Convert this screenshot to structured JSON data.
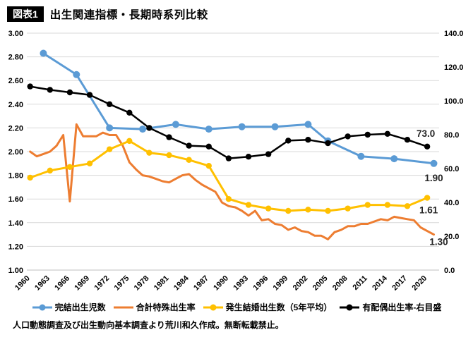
{
  "header": {
    "badge": "図表1",
    "title": "出生関連指標・長期時系列比較"
  },
  "chart_data": {
    "type": "line",
    "title": "出生関連指標・長期時系列比較",
    "grid": true,
    "legend_position": "bottom",
    "x_tick_labels": [
      "1960",
      "1963",
      "1966",
      "1969",
      "1972",
      "1975",
      "1978",
      "1981",
      "1984",
      "1987",
      "1990",
      "1993",
      "1996",
      "1999",
      "2002",
      "2005",
      "2008",
      "2011",
      "2014",
      "2017",
      "2020"
    ],
    "left_axis": {
      "min": 1.0,
      "max": 3.0,
      "tick_labels": [
        "3.00",
        "2.80",
        "2.60",
        "2.40",
        "2.20",
        "2.00",
        "1.80",
        "1.60",
        "1.40",
        "1.20",
        "1.00"
      ]
    },
    "right_axis": {
      "min": 0,
      "max": 140,
      "tick_labels": [
        "140.0",
        "120.0",
        "100.0",
        "80.0",
        "60.0",
        "40.0",
        "20.0",
        "0.0"
      ]
    },
    "series": [
      {
        "name": "完結出生児数",
        "color": "#5B9BD5",
        "axis": "left",
        "marker": true,
        "end_label": "1.90",
        "points": [
          [
            1962,
            2.83
          ],
          [
            1967,
            2.65
          ],
          [
            1972,
            2.2
          ],
          [
            1977,
            2.19
          ],
          [
            1982,
            2.23
          ],
          [
            1987,
            2.19
          ],
          [
            1992,
            2.21
          ],
          [
            1997,
            2.21
          ],
          [
            2002,
            2.23
          ],
          [
            2005,
            2.09
          ],
          [
            2010,
            1.96
          ],
          [
            2015,
            1.94
          ],
          [
            2021,
            1.9
          ]
        ]
      },
      {
        "name": "合計特殊出生率",
        "color": "#ED7D31",
        "axis": "left",
        "marker": false,
        "end_label": "1.30",
        "points": [
          [
            1960,
            2.0
          ],
          [
            1961,
            1.96
          ],
          [
            1962,
            1.98
          ],
          [
            1963,
            2.0
          ],
          [
            1964,
            2.05
          ],
          [
            1965,
            2.14
          ],
          [
            1966,
            1.58
          ],
          [
            1967,
            2.23
          ],
          [
            1968,
            2.13
          ],
          [
            1969,
            2.13
          ],
          [
            1970,
            2.13
          ],
          [
            1971,
            2.16
          ],
          [
            1972,
            2.14
          ],
          [
            1973,
            2.14
          ],
          [
            1974,
            2.05
          ],
          [
            1975,
            1.91
          ],
          [
            1976,
            1.85
          ],
          [
            1977,
            1.8
          ],
          [
            1978,
            1.79
          ],
          [
            1979,
            1.77
          ],
          [
            1980,
            1.75
          ],
          [
            1981,
            1.74
          ],
          [
            1982,
            1.77
          ],
          [
            1983,
            1.8
          ],
          [
            1984,
            1.81
          ],
          [
            1985,
            1.76
          ],
          [
            1986,
            1.72
          ],
          [
            1987,
            1.69
          ],
          [
            1988,
            1.66
          ],
          [
            1989,
            1.57
          ],
          [
            1990,
            1.54
          ],
          [
            1991,
            1.53
          ],
          [
            1992,
            1.5
          ],
          [
            1993,
            1.46
          ],
          [
            1994,
            1.5
          ],
          [
            1995,
            1.42
          ],
          [
            1996,
            1.43
          ],
          [
            1997,
            1.39
          ],
          [
            1998,
            1.38
          ],
          [
            1999,
            1.34
          ],
          [
            2000,
            1.36
          ],
          [
            2001,
            1.33
          ],
          [
            2002,
            1.32
          ],
          [
            2003,
            1.29
          ],
          [
            2004,
            1.29
          ],
          [
            2005,
            1.26
          ],
          [
            2006,
            1.32
          ],
          [
            2007,
            1.34
          ],
          [
            2008,
            1.37
          ],
          [
            2009,
            1.37
          ],
          [
            2010,
            1.39
          ],
          [
            2011,
            1.39
          ],
          [
            2012,
            1.41
          ],
          [
            2013,
            1.43
          ],
          [
            2014,
            1.42
          ],
          [
            2015,
            1.45
          ],
          [
            2016,
            1.44
          ],
          [
            2017,
            1.43
          ],
          [
            2018,
            1.42
          ],
          [
            2019,
            1.36
          ],
          [
            2020,
            1.33
          ],
          [
            2021,
            1.3
          ]
        ]
      },
      {
        "name": "発生結婚出生数（5年平均）",
        "color": "#FFC000",
        "axis": "left",
        "marker": true,
        "end_label": "1.61",
        "points": [
          [
            1960,
            1.78
          ],
          [
            1963,
            1.84
          ],
          [
            1966,
            1.87
          ],
          [
            1969,
            1.9
          ],
          [
            1972,
            2.02
          ],
          [
            1975,
            2.09
          ],
          [
            1978,
            1.99
          ],
          [
            1981,
            1.97
          ],
          [
            1984,
            1.93
          ],
          [
            1987,
            1.88
          ],
          [
            1990,
            1.6
          ],
          [
            1993,
            1.55
          ],
          [
            1996,
            1.52
          ],
          [
            1999,
            1.5
          ],
          [
            2002,
            1.51
          ],
          [
            2005,
            1.5
          ],
          [
            2008,
            1.52
          ],
          [
            2011,
            1.55
          ],
          [
            2014,
            1.55
          ],
          [
            2017,
            1.54
          ],
          [
            2020,
            1.61
          ]
        ]
      },
      {
        "name": "有配偶出生率-右目盛",
        "color": "#000000",
        "axis": "right",
        "marker": true,
        "end_label": "73.0",
        "points": [
          [
            1960,
            108.5
          ],
          [
            1963,
            106.5
          ],
          [
            1966,
            105
          ],
          [
            1969,
            103.5
          ],
          [
            1972,
            98
          ],
          [
            1975,
            93
          ],
          [
            1978,
            84
          ],
          [
            1981,
            78.5
          ],
          [
            1984,
            73.5
          ],
          [
            1987,
            73
          ],
          [
            1990,
            66
          ],
          [
            1993,
            67
          ],
          [
            1996,
            68.5
          ],
          [
            1999,
            76.5
          ],
          [
            2002,
            77
          ],
          [
            2005,
            75
          ],
          [
            2008,
            79
          ],
          [
            2011,
            80
          ],
          [
            2014,
            80.5
          ],
          [
            2017,
            77
          ],
          [
            2020,
            73
          ]
        ]
      }
    ]
  },
  "footer": {
    "source": "人口動態調査及び出生動向基本調査より荒川和久作成。無断転載禁止。"
  }
}
